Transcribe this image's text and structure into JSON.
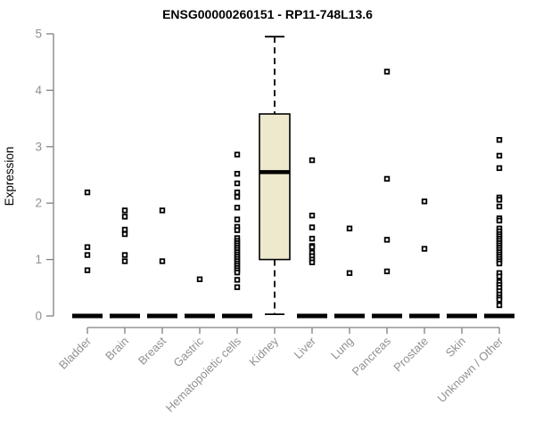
{
  "title": "ENSG00000260151 - RP11-748L13.6",
  "chart_data": {
    "type": "boxplot",
    "title": "ENSG00000260151 - RP11-748L13.6",
    "xlabel": "",
    "ylabel": "Expression",
    "ylim": [
      0,
      5
    ],
    "yticks": [
      "0",
      "1",
      "2",
      "3",
      "4",
      "5"
    ],
    "grid": false,
    "legend": null,
    "categories": [
      "Bladder",
      "Brain",
      "Breast",
      "Gastric",
      "Hematopoietic cells",
      "Kidney",
      "Liver",
      "Lung",
      "Pancreas",
      "Prostate",
      "Skin",
      "Unknown / Other"
    ],
    "boxes": [
      {
        "category": "Bladder",
        "median": 0,
        "points": [
          2.19,
          1.22,
          1.08,
          0.81
        ]
      },
      {
        "category": "Brain",
        "median": 0,
        "points": [
          1.87,
          1.76,
          1.53,
          1.45,
          1.08,
          0.97
        ]
      },
      {
        "category": "Breast",
        "median": 0,
        "points": [
          1.87,
          0.97
        ]
      },
      {
        "category": "Gastric",
        "median": 0,
        "points": [
          0.65
        ]
      },
      {
        "category": "Hematopoietic cells",
        "median": 0,
        "points": [
          2.86,
          2.52,
          2.35,
          2.19,
          2.11,
          1.92,
          1.71,
          1.58,
          1.52,
          1.38,
          1.33,
          1.29,
          1.25,
          1.21,
          1.17,
          1.13,
          1.09,
          1.05,
          1.01,
          0.97,
          0.93,
          0.89,
          0.85,
          0.81,
          0.77,
          0.64,
          0.51
        ]
      },
      {
        "category": "Kidney",
        "whisker_low": 0.03,
        "q1": 1.0,
        "median": 2.55,
        "q3": 3.58,
        "whisker_high": 4.95,
        "points": []
      },
      {
        "category": "Liver",
        "median": 0,
        "points": [
          2.76,
          1.78,
          1.57,
          1.37,
          1.24,
          1.22,
          1.12,
          1.06,
          1.0,
          0.95
        ]
      },
      {
        "category": "Lung",
        "median": 0,
        "points": [
          1.55,
          0.76
        ]
      },
      {
        "category": "Pancreas",
        "median": 0,
        "points": [
          4.33,
          2.43,
          1.35,
          0.79
        ]
      },
      {
        "category": "Prostate",
        "median": 0,
        "points": [
          2.03,
          1.19
        ]
      },
      {
        "category": "Skin",
        "median": 0,
        "points": []
      },
      {
        "category": "Unknown / Other",
        "median": 0,
        "points": [
          3.12,
          2.84,
          2.62,
          2.1,
          2.06,
          1.94,
          1.73,
          1.69,
          1.55,
          1.5,
          1.45,
          1.41,
          1.37,
          1.33,
          1.29,
          1.25,
          1.21,
          1.17,
          1.13,
          1.09,
          1.05,
          1.01,
          0.97,
          0.93,
          0.76,
          0.7,
          0.6,
          0.55,
          0.5,
          0.44,
          0.38,
          0.33,
          0.29,
          0.19
        ]
      }
    ],
    "colors": {
      "box_fill": "#EEE8CD",
      "box_stroke": "#000000",
      "median": "#000000",
      "point": "#000000",
      "point_center": "#ffffff",
      "zero_bar": "#000000",
      "axis": "#808080",
      "tick_text": "#919191",
      "title": "#000000"
    }
  }
}
